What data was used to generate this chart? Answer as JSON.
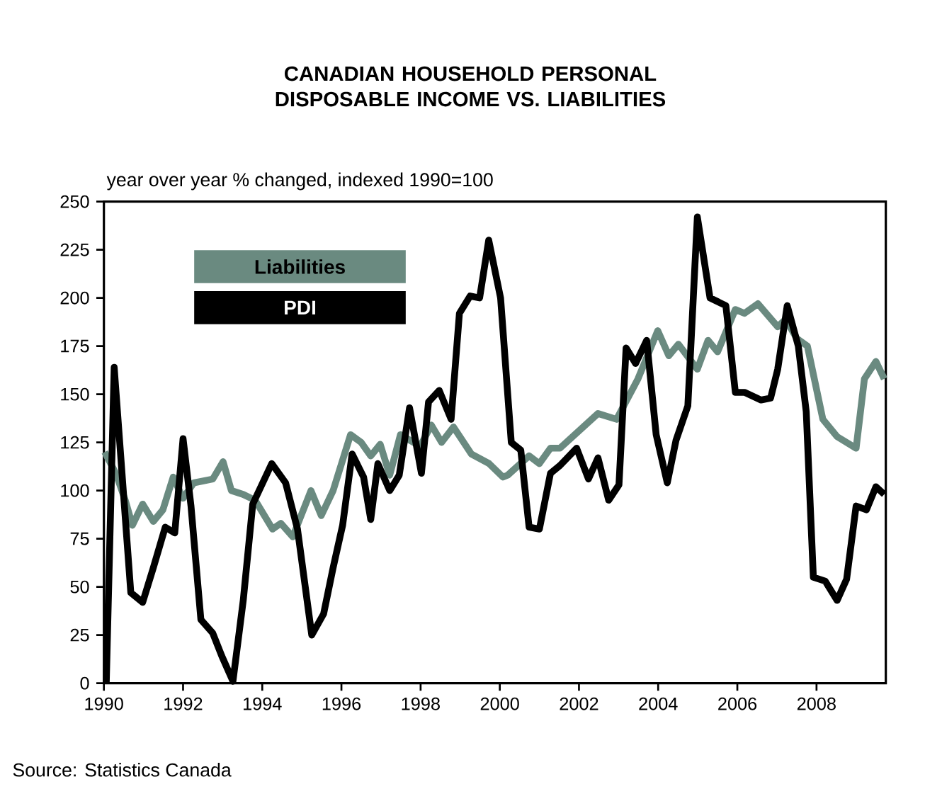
{
  "chart_data": {
    "type": "line",
    "title": "CANADIAN HOUSEHOLD PERSONAL DISPOSABLE INCOME VS. LIABILITIES",
    "ylabel": "year over year % changed, indexed 1990=100",
    "annotations": [
      "Source: Statistics Canada"
    ],
    "legend": "top left",
    "grid": false,
    "marker": "none",
    "line_style": "solid",
    "xlim": [
      1990,
      2009.75
    ],
    "xticks": [
      1990,
      1992,
      1994,
      1996,
      1998,
      2000,
      2002,
      2004,
      2006,
      2008
    ],
    "ylim": [
      0,
      250
    ],
    "yticks": [
      0,
      25,
      50,
      75,
      100,
      125,
      150,
      175,
      200,
      225,
      250
    ],
    "series": [
      {
        "name": "Liabilities",
        "color": "#6a8a80",
        "x": [
          1990.02,
          1990.3,
          1990.54,
          1990.72,
          1990.98,
          1991.25,
          1991.49,
          1991.75,
          1992.0,
          1992.27,
          1992.75,
          1993.01,
          1993.22,
          1993.52,
          1993.82,
          1994.26,
          1994.47,
          1994.77,
          1995.23,
          1995.49,
          1995.79,
          1996.23,
          1996.5,
          1996.74,
          1996.98,
          1997.22,
          1997.49,
          1997.99,
          1998.27,
          1998.53,
          1998.83,
          1999.28,
          1999.73,
          2000.08,
          2000.2,
          2000.74,
          2001.0,
          2001.28,
          2001.52,
          2002.0,
          2002.48,
          2002.95,
          2003.49,
          2003.99,
          2004.27,
          2004.51,
          2004.99,
          2005.26,
          2005.5,
          2005.95,
          2006.18,
          2006.52,
          2007.02,
          2007.22,
          2007.5,
          2007.77,
          2008.16,
          2008.52,
          2009.0,
          2009.21,
          2009.5,
          2009.71
        ],
        "values": [
          120,
          109,
          95,
          82,
          93,
          84,
          90,
          107,
          96,
          104,
          106,
          115,
          100,
          98,
          95,
          80,
          83,
          76,
          100,
          87,
          100,
          129,
          125,
          118,
          124,
          108,
          129,
          123,
          134,
          125,
          133,
          119,
          114,
          107,
          108,
          118,
          114,
          122,
          122,
          131,
          140,
          137,
          158,
          183,
          170,
          176,
          163,
          178,
          172,
          194,
          192,
          197,
          185,
          189,
          179,
          175,
          137,
          128,
          122,
          158,
          167,
          158
        ]
      },
      {
        "name": "PDI",
        "color": "#000000",
        "x": [
          1990.06,
          1990.26,
          1990.68,
          1990.98,
          1991.25,
          1991.55,
          1991.79,
          1992.0,
          1992.2,
          1992.45,
          1992.75,
          1992.98,
          1993.26,
          1993.52,
          1993.76,
          1994.24,
          1994.59,
          1994.89,
          1995.25,
          1995.55,
          1995.79,
          1996.03,
          1996.27,
          1996.56,
          1996.74,
          1996.92,
          1997.22,
          1997.46,
          1997.72,
          1998.02,
          1998.2,
          1998.47,
          1998.77,
          1998.98,
          1999.25,
          1999.49,
          1999.72,
          2000.02,
          2000.29,
          2000.53,
          2000.74,
          2001.0,
          2001.28,
          2001.52,
          2001.94,
          2002.24,
          2002.48,
          2002.75,
          2003.01,
          2003.19,
          2003.43,
          2003.71,
          2003.95,
          2004.23,
          2004.45,
          2004.75,
          2004.99,
          2005.31,
          2005.71,
          2005.95,
          2006.18,
          2006.6,
          2006.84,
          2007.02,
          2007.26,
          2007.54,
          2007.74,
          2007.92,
          2008.22,
          2008.52,
          2008.76,
          2009.0,
          2009.26,
          2009.5,
          2009.71
        ],
        "values": [
          0,
          164,
          47,
          42,
          60,
          81,
          78,
          127,
          92,
          33,
          26,
          14,
          1,
          43,
          93,
          114,
          104,
          80,
          25,
          36,
          60,
          82,
          119,
          107,
          85,
          114,
          100,
          108,
          143,
          109,
          146,
          152,
          137,
          192,
          201,
          200,
          230,
          200,
          125,
          121,
          81,
          80,
          109,
          113,
          122,
          106,
          117,
          95,
          103,
          174,
          166,
          178,
          129,
          104,
          126,
          144,
          242,
          200,
          196,
          151,
          151,
          147,
          148,
          163,
          196,
          175,
          141,
          55,
          53,
          43,
          54,
          92,
          90,
          102,
          98
        ]
      }
    ]
  }
}
